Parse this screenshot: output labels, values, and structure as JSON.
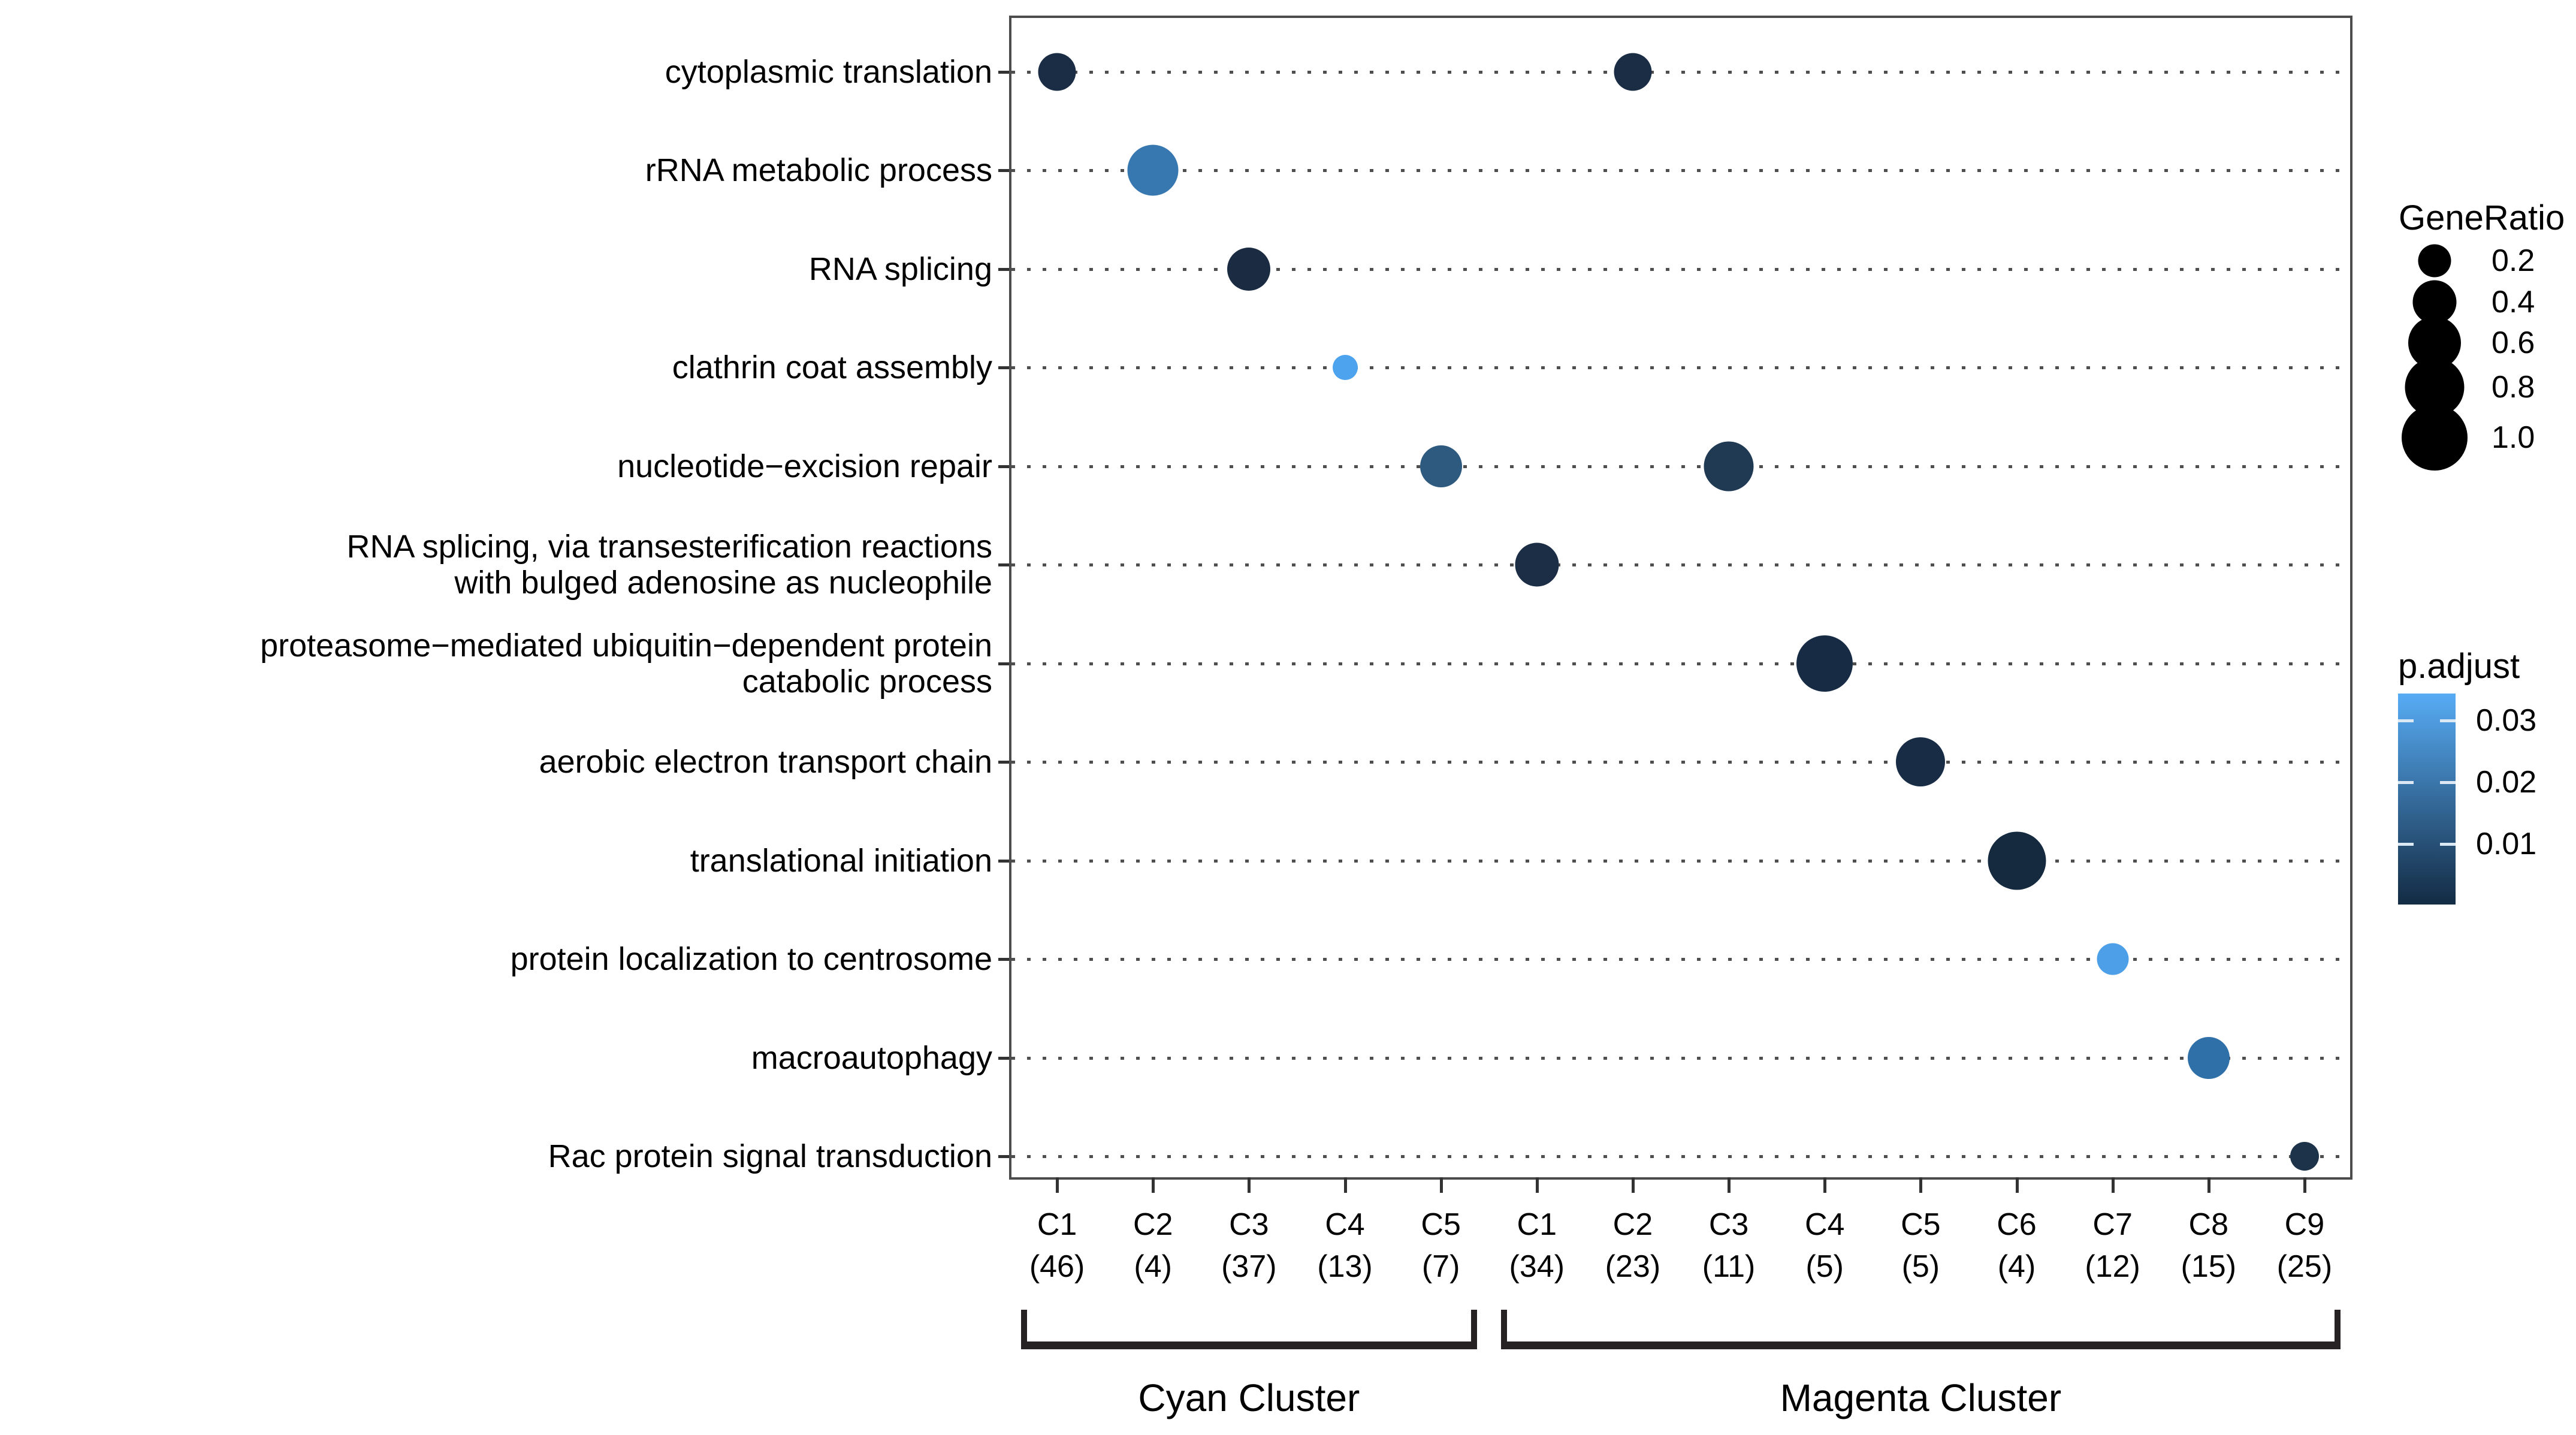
{
  "chart_data": {
    "type": "scatter",
    "subtype": "enrichment-dotplot",
    "title": "",
    "xlabel": "",
    "ylabel": "",
    "grid": "dotted-horizontal",
    "y_categories": [
      [
        "cytoplasmic translation"
      ],
      [
        "rRNA metabolic process"
      ],
      [
        "RNA splicing"
      ],
      [
        "clathrin coat assembly"
      ],
      [
        "nucleotide−excision repair"
      ],
      [
        "RNA splicing, via transesterification reactions",
        "with bulged adenosine as nucleophile"
      ],
      [
        "proteasome−mediated ubiquitin−dependent protein",
        "catabolic process"
      ],
      [
        "aerobic electron transport chain"
      ],
      [
        "translational initiation"
      ],
      [
        "protein localization to centrosome"
      ],
      [
        "macroautophagy"
      ],
      [
        "Rac protein signal transduction"
      ]
    ],
    "x_groups": [
      {
        "name": "Cyan Cluster",
        "columns": [
          {
            "label": "C1",
            "count": "(46)"
          },
          {
            "label": "C2",
            "count": "(4)"
          },
          {
            "label": "C3",
            "count": "(37)"
          },
          {
            "label": "C4",
            "count": "(13)"
          },
          {
            "label": "C5",
            "count": "(7)"
          }
        ]
      },
      {
        "name": "Magenta Cluster",
        "columns": [
          {
            "label": "C1",
            "count": "(34)"
          },
          {
            "label": "C2",
            "count": "(23)"
          },
          {
            "label": "C3",
            "count": "(11)"
          },
          {
            "label": "C4",
            "count": "(5)"
          },
          {
            "label": "C5",
            "count": "(5)"
          },
          {
            "label": "C6",
            "count": "(4)"
          },
          {
            "label": "C7",
            "count": "(12)"
          },
          {
            "label": "C8",
            "count": "(15)"
          },
          {
            "label": "C9",
            "count": "(25)"
          }
        ]
      }
    ],
    "points": [
      {
        "row": 0,
        "col": 0,
        "gene_ratio": 0.33,
        "color": "#1b2d44",
        "d": 63
      },
      {
        "row": 0,
        "col": 6,
        "gene_ratio": 0.33,
        "color": "#1b2d44",
        "d": 63
      },
      {
        "row": 1,
        "col": 1,
        "gene_ratio": 0.6,
        "color": "#3878b0",
        "d": 85
      },
      {
        "row": 2,
        "col": 2,
        "gene_ratio": 0.43,
        "color": "#1b2c42",
        "d": 72
      },
      {
        "row": 3,
        "col": 3,
        "gene_ratio": 0.15,
        "color": "#4da3ee",
        "d": 42
      },
      {
        "row": 4,
        "col": 4,
        "gene_ratio": 0.4,
        "color": "#2e5a7f",
        "d": 70
      },
      {
        "row": 4,
        "col": 7,
        "gene_ratio": 0.57,
        "color": "#203a54",
        "d": 83
      },
      {
        "row": 5,
        "col": 5,
        "gene_ratio": 0.44,
        "color": "#1b2e45",
        "d": 73
      },
      {
        "row": 6,
        "col": 8,
        "gene_ratio": 0.73,
        "color": "#172c44",
        "d": 94
      },
      {
        "row": 7,
        "col": 9,
        "gene_ratio": 0.56,
        "color": "#182d45",
        "d": 82
      },
      {
        "row": 8,
        "col": 10,
        "gene_ratio": 0.78,
        "color": "#15293f",
        "d": 97
      },
      {
        "row": 9,
        "col": 11,
        "gene_ratio": 0.23,
        "color": "#4d9fe8",
        "d": 53
      },
      {
        "row": 10,
        "col": 12,
        "gene_ratio": 0.4,
        "color": "#3070a8",
        "d": 70
      },
      {
        "row": 11,
        "col": 13,
        "gene_ratio": 0.19,
        "color": "#1d3349",
        "d": 48
      }
    ],
    "legend_size": {
      "title": "GeneRatio",
      "items": [
        {
          "label": "0.2",
          "d": 55
        },
        {
          "label": "0.4",
          "d": 73
        },
        {
          "label": "0.6",
          "d": 88
        },
        {
          "label": "0.8",
          "d": 99
        },
        {
          "label": "1.0",
          "d": 110
        }
      ]
    },
    "legend_color": {
      "title": "p.adjust",
      "ticks": [
        "0.03",
        "0.02",
        "0.01"
      ],
      "gradient_top": "#57acf5",
      "gradient_bottom": "#132b43"
    }
  }
}
